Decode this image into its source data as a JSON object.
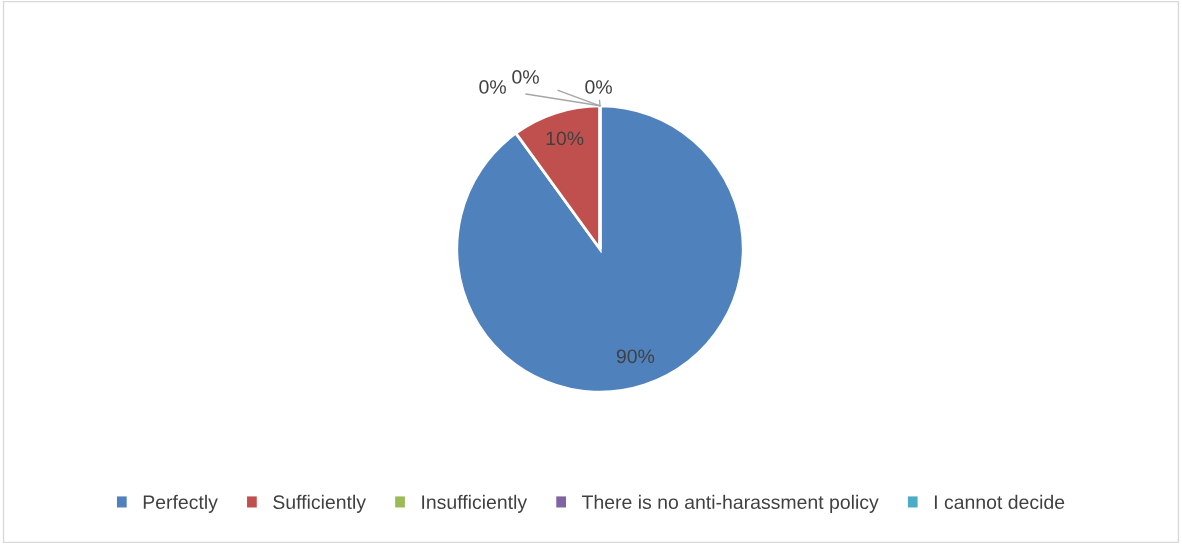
{
  "chart_data": {
    "type": "pie",
    "categories": [
      "Perfectly",
      "Sufficiently",
      "Insufficiently",
      "There is no anti-harassment policy",
      "I cannot decide"
    ],
    "values": [
      90,
      10,
      0,
      0,
      0
    ],
    "colors": [
      "#4f81bd",
      "#c0504d",
      "#9bbb59",
      "#8064a2",
      "#4bacc6"
    ],
    "value_labels": [
      "90%",
      "10%",
      "0%",
      "0%",
      "0%"
    ],
    "legend": "bottom"
  }
}
